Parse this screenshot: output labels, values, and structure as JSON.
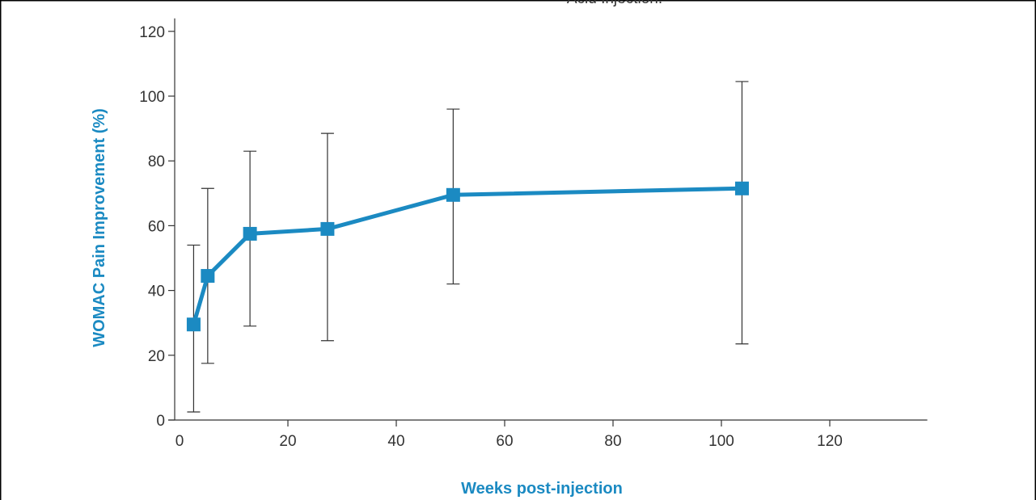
{
  "chart_data": {
    "type": "line",
    "title": "Acid Injection.",
    "xlabel": "Weeks post-injection",
    "ylabel": "WOMAC Pain Improvement (%)",
    "xlim": [
      0,
      138
    ],
    "ylim": [
      0,
      122
    ],
    "xticks": [
      0,
      20,
      40,
      60,
      80,
      100,
      120
    ],
    "yticks": [
      0,
      20,
      40,
      60,
      80,
      100,
      120
    ],
    "series": [
      {
        "x": [
          2.6,
          5.2,
          13,
          27.3,
          50.5,
          103.8
        ],
        "y": [
          29.5,
          44.5,
          57.5,
          59,
          69.5,
          71.5
        ],
        "err_low": [
          2.5,
          17.5,
          29,
          24.5,
          42,
          23.5
        ],
        "err_high": [
          54,
          71.5,
          83,
          88.5,
          96,
          104.5
        ]
      }
    ],
    "grid": false,
    "colors": {
      "series": "#1b8ac2",
      "axis_title": "#1b8ac2",
      "axis": "#333333",
      "error_bar": "#333333",
      "frame": "#000000"
    }
  }
}
